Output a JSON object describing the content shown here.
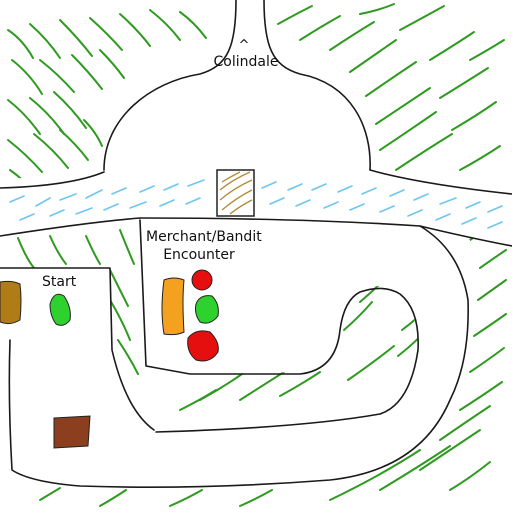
{
  "labels": {
    "north_arrow": "^",
    "colindale": "Colindale",
    "encounter": "Merchant/Bandit Encounter",
    "start": "Start"
  },
  "colors": {
    "grass": "#2e9a1f",
    "water": "#6fc6f1",
    "bridge_hatch": "#b08a35",
    "token_red": "#e60f0f",
    "token_green": "#2fd12f",
    "token_orange": "#f3a11e",
    "token_mustard": "#b07c15",
    "token_brown": "#8b3f1f"
  },
  "icons": [
    "river",
    "bridge",
    "path",
    "grass-hatching",
    "player-token",
    "merchant-wagon",
    "bandit-token",
    "crate",
    "supply-cart"
  ]
}
